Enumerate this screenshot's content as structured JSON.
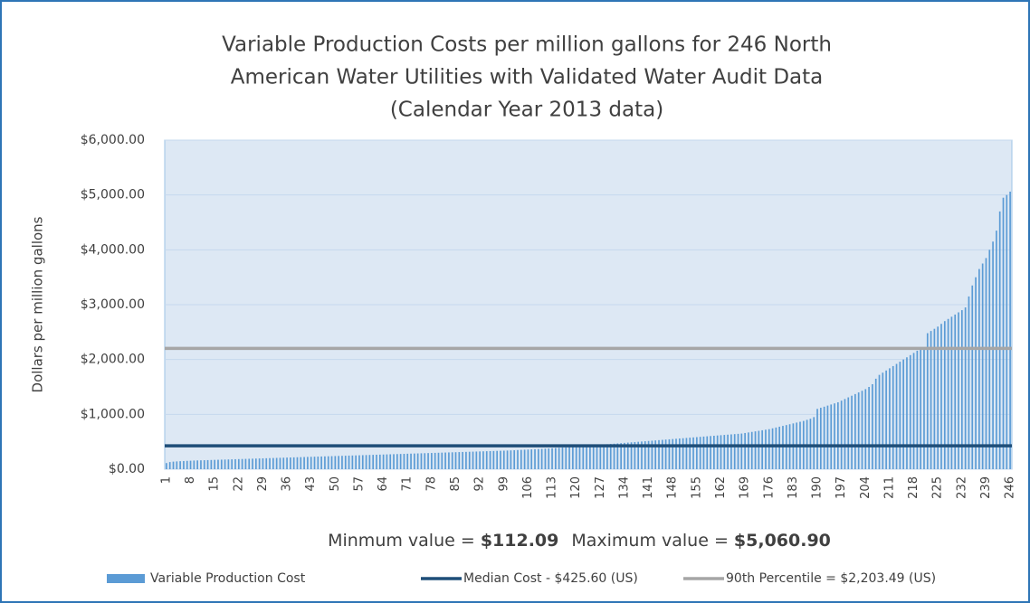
{
  "chart_data": {
    "type": "bar",
    "title": [
      "Variable Production Costs per million gallons for 246 North",
      "American Water Utilities with Validated Water Audit Data",
      "(Calendar Year 2013 data)"
    ],
    "y_label": "Dollars per million gallons",
    "annotation": [
      "Minmum value = ",
      "$112.09",
      "Maximum value = ",
      "$5,060.90"
    ],
    "categories": [
      "1",
      null,
      null,
      null,
      null,
      null,
      null,
      "8",
      null,
      null,
      null,
      null,
      null,
      null,
      "15",
      null,
      null,
      null,
      null,
      null,
      null,
      "22",
      null,
      null,
      null,
      null,
      null,
      null,
      "29",
      null,
      null,
      null,
      null,
      null,
      null,
      "36",
      null,
      null,
      null,
      null,
      null,
      null,
      "43",
      null,
      null,
      null,
      null,
      null,
      null,
      "50",
      null,
      null,
      null,
      null,
      null,
      null,
      "57",
      null,
      null,
      null,
      null,
      null,
      null,
      "64",
      null,
      null,
      null,
      null,
      null,
      null,
      "71",
      null,
      null,
      null,
      null,
      null,
      null,
      "78",
      null,
      null,
      null,
      null,
      null,
      null,
      "85",
      null,
      null,
      null,
      null,
      null,
      null,
      "92",
      null,
      null,
      null,
      null,
      null,
      null,
      "99",
      null,
      null,
      null,
      null,
      null,
      null,
      "106",
      null,
      null,
      null,
      null,
      null,
      null,
      "113",
      null,
      null,
      null,
      null,
      null,
      null,
      "120",
      null,
      null,
      null,
      null,
      null,
      null,
      "127",
      null,
      null,
      null,
      null,
      null,
      null,
      "134",
      null,
      null,
      null,
      null,
      null,
      null,
      "141",
      null,
      null,
      null,
      null,
      null,
      null,
      "148",
      null,
      null,
      null,
      null,
      null,
      null,
      "155",
      null,
      null,
      null,
      null,
      null,
      null,
      "162",
      null,
      null,
      null,
      null,
      null,
      null,
      "169",
      null,
      null,
      null,
      null,
      null,
      null,
      "176",
      null,
      null,
      null,
      null,
      null,
      null,
      "183",
      null,
      null,
      null,
      null,
      null,
      null,
      "190",
      null,
      null,
      null,
      null,
      null,
      null,
      "197",
      null,
      null,
      null,
      null,
      null,
      null,
      "204",
      null,
      null,
      null,
      null,
      null,
      null,
      "211",
      null,
      null,
      null,
      null,
      null,
      null,
      "218",
      null,
      null,
      null,
      null,
      null,
      null,
      "225",
      null,
      null,
      null,
      null,
      null,
      null,
      "232",
      null,
      null,
      null,
      null,
      null,
      null,
      "239",
      null,
      null,
      null,
      null,
      null,
      null,
      "246"
    ],
    "series": [
      {
        "name": "Variable Production Cost",
        "color": "#5b9bd5",
        "values": [
          112.09,
          130,
          138,
          142,
          146,
          149,
          152,
          155,
          158,
          160,
          162,
          164,
          166,
          168,
          170,
          172,
          174,
          176,
          178,
          180,
          182,
          184,
          186,
          188,
          190,
          192,
          194,
          196,
          198,
          200,
          202,
          204,
          206,
          208,
          210,
          212,
          214,
          216,
          218,
          220,
          222,
          224,
          226,
          228,
          230,
          232,
          234,
          236,
          238,
          240,
          242,
          244,
          246,
          248,
          250,
          252,
          254,
          256,
          258,
          260,
          262,
          264,
          266,
          268,
          270,
          272,
          274,
          276,
          278,
          280,
          282,
          284,
          286,
          288,
          290,
          292,
          294,
          296,
          298,
          300,
          302,
          304,
          306,
          308,
          310,
          312,
          314,
          316,
          318,
          320,
          322,
          324,
          326,
          328,
          330,
          332,
          334,
          336,
          338,
          340,
          343,
          346,
          349,
          352,
          355,
          358,
          361,
          364,
          367,
          370,
          374,
          378,
          382,
          386,
          390,
          394,
          398,
          402,
          406,
          410,
          415,
          420,
          425.6,
          430,
          435,
          440,
          445,
          450,
          455,
          460,
          465,
          470,
          475,
          480,
          485,
          490,
          495,
          500,
          505,
          510,
          515,
          520,
          525,
          530,
          535,
          540,
          545,
          550,
          555,
          560,
          565,
          570,
          575,
          580,
          585,
          590,
          595,
          600,
          605,
          610,
          615,
          620,
          625,
          630,
          635,
          640,
          645,
          650,
          660,
          670,
          680,
          690,
          700,
          710,
          720,
          730,
          745,
          760,
          775,
          790,
          805,
          820,
          835,
          850,
          865,
          880,
          900,
          920,
          950,
          1100,
          1120,
          1140,
          1160,
          1180,
          1200,
          1220,
          1250,
          1280,
          1310,
          1340,
          1370,
          1400,
          1430,
          1460,
          1500,
          1550,
          1650,
          1720,
          1760,
          1800,
          1840,
          1880,
          1920,
          1960,
          2000,
          2040,
          2080,
          2120,
          2160,
          2190,
          2203.49,
          2480,
          2520,
          2560,
          2600,
          2650,
          2700,
          2740,
          2780,
          2820,
          2860,
          2900,
          2950,
          3150,
          3350,
          3500,
          3650,
          3750,
          3850,
          4000,
          4150,
          4350,
          4700,
          4950,
          5000,
          5060.9
        ]
      }
    ],
    "reference_lines": [
      {
        "name": "Median Cost - $425.60 (US)",
        "value": 425.6,
        "color": "#1f4e79"
      },
      {
        "name": "90th Percentile = $2,203.49 (US)",
        "value": 2203.49,
        "color": "#a6a6a6"
      }
    ],
    "ylim": [
      0,
      6000
    ],
    "yticks": [
      {
        "value": 0,
        "label": "$0.00"
      },
      {
        "value": 1000,
        "label": "$1,000.00"
      },
      {
        "value": 2000,
        "label": "$2,000.00"
      },
      {
        "value": 3000,
        "label": "$3,000.00"
      },
      {
        "value": 4000,
        "label": "$4,000.00"
      },
      {
        "value": 5000,
        "label": "$5,000.00"
      },
      {
        "value": 6000,
        "label": "$6,000.00"
      }
    ],
    "grid": true
  }
}
